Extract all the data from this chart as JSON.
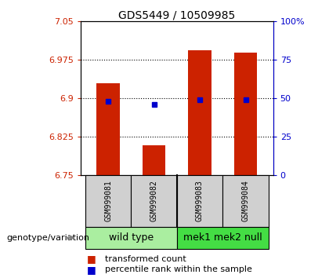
{
  "title": "GDS5449 / 10509985",
  "samples": [
    "GSM999081",
    "GSM999082",
    "GSM999083",
    "GSM999084"
  ],
  "transformed_counts": [
    6.928,
    6.808,
    6.993,
    6.988
  ],
  "percentile_ranks": [
    48,
    46,
    49,
    49
  ],
  "ylim_left": [
    6.75,
    7.05
  ],
  "ylim_right": [
    0,
    100
  ],
  "yticks_left": [
    6.75,
    6.825,
    6.9,
    6.975,
    7.05
  ],
  "yticks_right": [
    0,
    25,
    50,
    75,
    100
  ],
  "ytick_labels_left": [
    "6.75",
    "6.825",
    "6.9",
    "6.975",
    "7.05"
  ],
  "ytick_labels_right": [
    "0",
    "25",
    "50",
    "75",
    "100%"
  ],
  "hlines": [
    6.825,
    6.9,
    6.975
  ],
  "bar_color": "#cc2200",
  "dot_color": "#0000cc",
  "bar_bottom": 6.75,
  "groups": [
    {
      "label": "wild type",
      "samples": [
        0,
        1
      ],
      "color": "#aaeea0"
    },
    {
      "label": "mek1 mek2 null",
      "samples": [
        2,
        3
      ],
      "color": "#44dd44"
    }
  ],
  "genotype_label": "genotype/variation",
  "legend_items": [
    {
      "color": "#cc2200",
      "label": "transformed count"
    },
    {
      "color": "#0000cc",
      "label": "percentile rank within the sample"
    }
  ],
  "bar_width": 0.5,
  "background_color": "#ffffff",
  "plot_bg_color": "#ffffff",
  "sample_box_color": "#d0d0d0",
  "border_color": "#000000",
  "title_fontsize": 10,
  "tick_fontsize": 8,
  "sample_fontsize": 7,
  "group_fontsize": 9,
  "legend_fontsize": 8
}
